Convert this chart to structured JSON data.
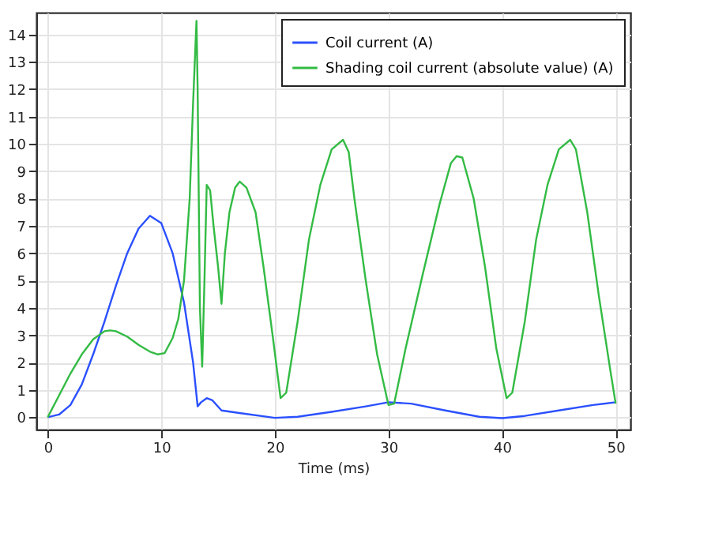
{
  "chart_data": {
    "type": "line",
    "xlabel": "Time (ms)",
    "xlim": [
      -1,
      51.3
    ],
    "ylim": [
      -0.45,
      14.8
    ],
    "xticks": [
      0,
      10,
      20,
      30,
      40,
      50
    ],
    "yticks": [
      0,
      1,
      2,
      3,
      4,
      5,
      6,
      7,
      8,
      9,
      10,
      11,
      12,
      13,
      14
    ],
    "grid": true,
    "legend": "top right",
    "marker": "none",
    "line_style": "solid",
    "series": [
      {
        "name": "Coil current (A)",
        "color": "#2b50ff",
        "x": [
          0,
          1,
          2,
          3,
          4,
          5,
          6,
          7,
          8,
          9,
          10,
          11,
          12,
          12.8,
          13.2,
          13.5,
          14,
          14.5,
          15.3,
          17,
          20,
          22,
          25,
          28,
          30,
          32,
          35,
          38,
          40,
          42,
          45,
          48,
          50
        ],
        "values": [
          0,
          0.1,
          0.45,
          1.2,
          2.3,
          3.5,
          4.8,
          6.0,
          6.9,
          7.37,
          7.1,
          6.0,
          4.2,
          2.0,
          0.4,
          0.55,
          0.7,
          0.62,
          0.25,
          0.15,
          -0.02,
          0.02,
          0.2,
          0.4,
          0.55,
          0.5,
          0.25,
          0.02,
          -0.03,
          0.05,
          0.25,
          0.45,
          0.55
        ]
      },
      {
        "name": "Shading coil current (absolute value) (A)",
        "color": "#33bb44",
        "x": [
          0,
          1,
          2,
          3,
          4,
          5,
          5.5,
          6,
          7,
          8,
          9,
          9.7,
          10.3,
          11,
          11.5,
          12,
          12.5,
          12.8,
          13.1,
          13.2,
          13.4,
          13.6,
          13.8,
          14.0,
          14.3,
          14.6,
          15.0,
          15.3,
          15.6,
          16.0,
          16.5,
          16.9,
          17.5,
          18.3,
          19.0,
          19.8,
          20.5,
          21,
          22,
          23,
          24,
          25,
          26,
          26.5,
          27,
          28,
          29,
          30,
          30.5,
          31.5,
          33,
          34.5,
          35.5,
          36,
          36.5,
          37.5,
          38.5,
          39.5,
          40.4,
          40.9,
          42,
          43,
          44,
          45,
          46,
          46.5,
          47.5,
          48.5,
          49.5,
          50
        ],
        "values": [
          0,
          0.8,
          1.6,
          2.3,
          2.85,
          3.15,
          3.18,
          3.15,
          2.95,
          2.65,
          2.4,
          2.3,
          2.35,
          2.9,
          3.6,
          5,
          8,
          11.5,
          14.5,
          12,
          4,
          1.85,
          5,
          8.5,
          8.3,
          7,
          5.5,
          4.15,
          6,
          7.5,
          8.4,
          8.62,
          8.4,
          7.5,
          5.5,
          3,
          0.7,
          0.9,
          3.5,
          6.5,
          8.5,
          9.8,
          10.15,
          9.7,
          8,
          5,
          2.3,
          0.45,
          0.5,
          2.5,
          5.2,
          7.8,
          9.3,
          9.55,
          9.5,
          8,
          5.5,
          2.5,
          0.7,
          0.9,
          3.5,
          6.5,
          8.5,
          9.8,
          10.15,
          9.8,
          7.5,
          4.5,
          1.8,
          0.5
        ]
      }
    ]
  }
}
